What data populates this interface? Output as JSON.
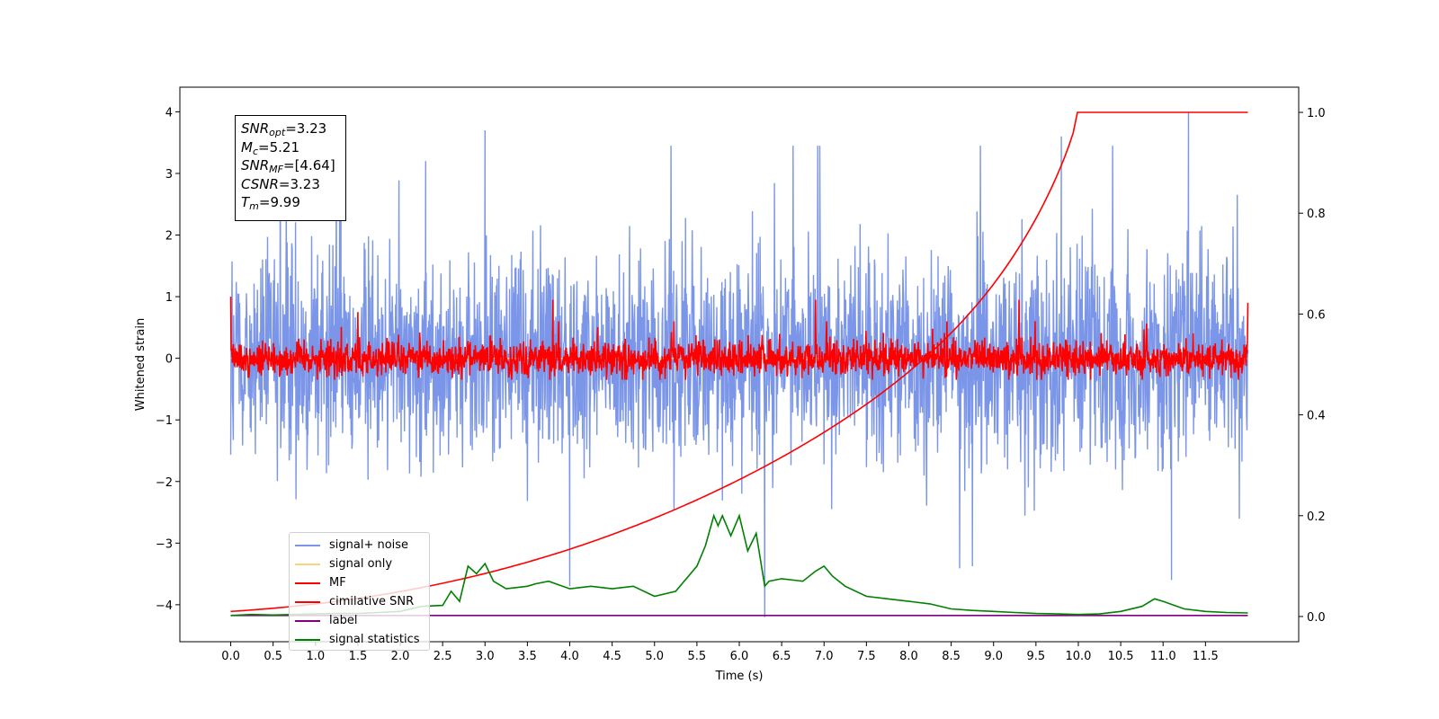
{
  "chart_data": {
    "type": "line",
    "xlabel": "Time (s)",
    "ylabel": "Whitened strain",
    "xlim": [
      -0.6,
      12.6
    ],
    "ylim": [
      -4.6,
      4.4
    ],
    "ylim_right": [
      -0.05,
      1.05
    ],
    "x_ticks": [
      "0.0",
      "0.5",
      "1.0",
      "1.5",
      "2.0",
      "2.5",
      "3.0",
      "3.5",
      "4.0",
      "4.5",
      "5.0",
      "5.5",
      "6.0",
      "6.5",
      "7.0",
      "7.5",
      "8.0",
      "8.5",
      "9.0",
      "9.5",
      "10.0",
      "10.5",
      "11.0",
      "11.5"
    ],
    "y_ticks_left": [
      "4",
      "3",
      "2",
      "1",
      "0",
      "−1",
      "−2",
      "−3",
      "−4"
    ],
    "y_ticks_right": [
      "1.0",
      "0.8",
      "0.6",
      "0.4",
      "0.2",
      "0.0"
    ],
    "grid": false,
    "legend_placement": "lower-left",
    "annotation": {
      "snr_opt": "=3.23",
      "mc": "=5.21",
      "snr_mf": "=[4.64]",
      "csnr": "=3.23",
      "tm": "=9.99"
    },
    "series": [
      {
        "name": "signal+ noise",
        "color": "#7b96e8",
        "axis": "left",
        "t_range": [
          0,
          12
        ],
        "envelope": [
          -2.2,
          2.3
        ],
        "peaks": [
          [
            1.3,
            3.2
          ],
          [
            2.3,
            3.2
          ],
          [
            3.0,
            3.7
          ],
          [
            4.0,
            -3.7
          ],
          [
            6.3,
            -4.2
          ],
          [
            9.8,
            3.6
          ],
          [
            11.3,
            4.0
          ],
          [
            11.1,
            -3.6
          ]
        ],
        "note_markers": []
      },
      {
        "name": "signal only",
        "color": "#ffd27a",
        "axis": "left",
        "x": [
          0,
          12
        ],
        "y": [
          0,
          0
        ]
      },
      {
        "name": "MF",
        "color": "#ff0000",
        "axis": "left",
        "t_range": [
          0,
          12
        ],
        "envelope": [
          -0.35,
          0.4
        ],
        "peaks": [
          [
            0.0,
            1.0
          ],
          [
            1.5,
            0.75
          ],
          [
            3.8,
            0.95
          ],
          [
            6.9,
            0.95
          ],
          [
            9.3,
            0.95
          ],
          [
            12.0,
            0.9
          ]
        ]
      },
      {
        "name": "cimilative SNR",
        "color": "#ff0000",
        "axis": "right",
        "t_merger": 9.99,
        "y_start": 0.01,
        "y_end": 1.0
      },
      {
        "name": "label",
        "color": "#800080",
        "axis": "right",
        "x": [
          0,
          12
        ],
        "y": [
          0.002,
          0.002
        ]
      },
      {
        "name": "signal statistics",
        "color": "#008000",
        "axis": "right",
        "x": [
          0,
          0.25,
          0.5,
          0.75,
          1.0,
          1.25,
          1.5,
          1.75,
          2.0,
          2.25,
          2.5,
          2.6,
          2.7,
          2.8,
          2.9,
          3.0,
          3.1,
          3.25,
          3.5,
          3.6,
          3.75,
          4.0,
          4.25,
          4.5,
          4.75,
          5.0,
          5.25,
          5.5,
          5.6,
          5.7,
          5.75,
          5.8,
          5.9,
          6.0,
          6.1,
          6.2,
          6.3,
          6.35,
          6.5,
          6.75,
          6.9,
          7.0,
          7.1,
          7.25,
          7.5,
          7.75,
          8.0,
          8.25,
          8.5,
          8.75,
          9.0,
          9.25,
          9.5,
          9.75,
          10.0,
          10.25,
          10.5,
          10.75,
          10.9,
          11.0,
          11.25,
          11.5,
          11.75,
          12.0
        ],
        "y": [
          0.002,
          0.004,
          0.003,
          0.004,
          0.005,
          0.006,
          0.006,
          0.008,
          0.01,
          0.02,
          0.022,
          0.05,
          0.03,
          0.1,
          0.085,
          0.105,
          0.07,
          0.055,
          0.06,
          0.065,
          0.07,
          0.055,
          0.06,
          0.055,
          0.06,
          0.04,
          0.05,
          0.1,
          0.14,
          0.2,
          0.18,
          0.2,
          0.16,
          0.2,
          0.13,
          0.165,
          0.06,
          0.07,
          0.075,
          0.07,
          0.09,
          0.1,
          0.08,
          0.06,
          0.04,
          0.035,
          0.03,
          0.025,
          0.015,
          0.012,
          0.01,
          0.008,
          0.006,
          0.005,
          0.004,
          0.005,
          0.01,
          0.02,
          0.035,
          0.03,
          0.015,
          0.01,
          0.008,
          0.007
        ]
      }
    ]
  }
}
